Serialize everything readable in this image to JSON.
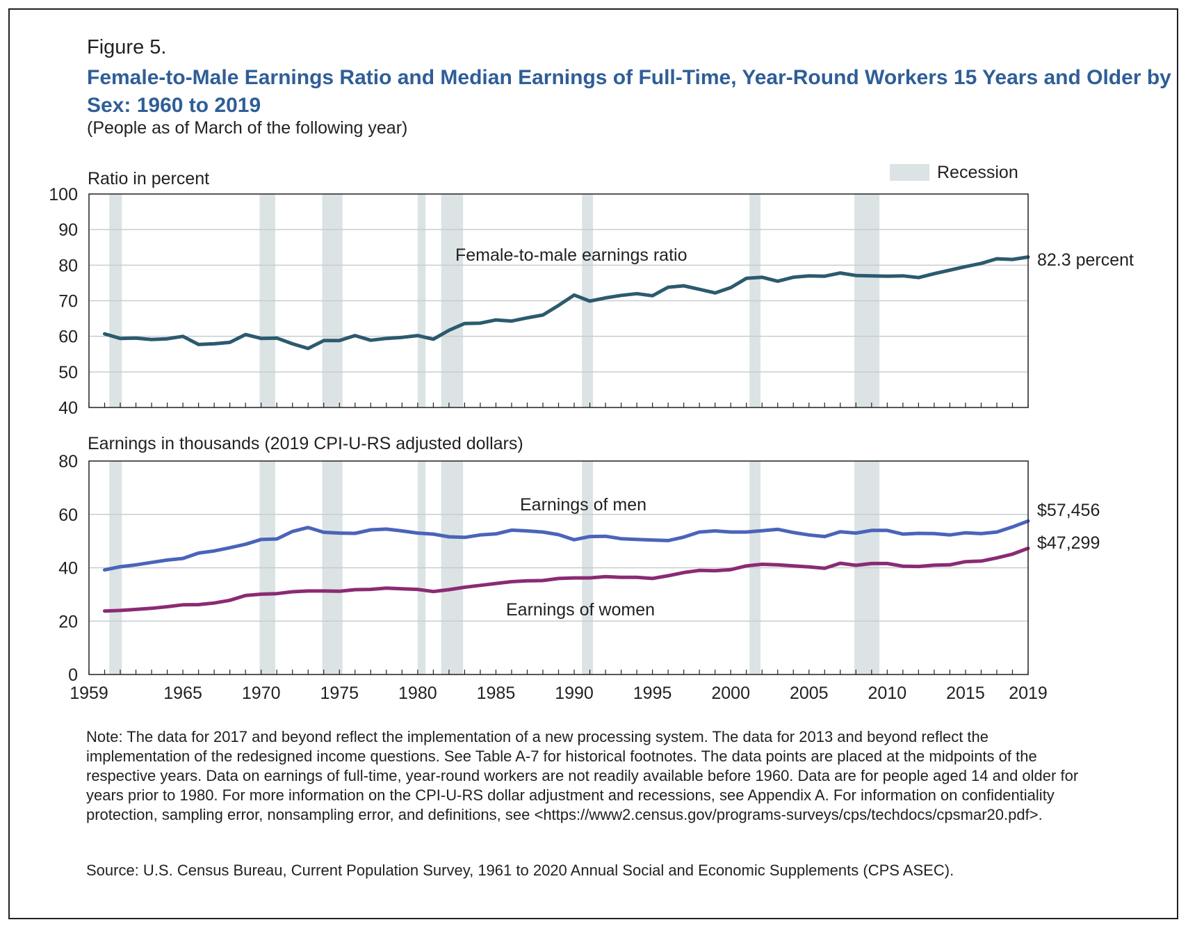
{
  "figure_label": "Figure 5.",
  "title": "Female-to-Male Earnings Ratio and Median Earnings of Full-Time, Year-Round Workers 15 Years and Older by Sex: 1960 to 2019",
  "subtitle": "(People as of March of the following year)",
  "legend": {
    "recession_label": "Recession"
  },
  "colors": {
    "ratio": "#2c5a6e",
    "men": "#4a64ba",
    "women": "#8b2a74",
    "recession": "#dbe3e4",
    "grid": "#c9cccf"
  },
  "note": "Note: The data for 2017 and beyond reflect the implementation of a new processing system. The data for 2013 and beyond reflect the implementation of the redesigned income questions. See Table A-7 for historical footnotes. The data points are placed at the midpoints of the respective years. Data on earnings of full-time, year-round workers are not readily available before 1960. Data are for people aged 14 and older for years prior to 1980. For more information on the CPI-U-RS dollar adjustment and recessions, see Appendix A. For information on confidentiality protection, sampling error, nonsampling error, and definitions, see <https://www2.census.gov/programs-surveys/cps/techdocs/cpsmar20.pdf>.",
  "source": "Source: U.S. Census Bureau, Current Population Survey, 1961 to 2020 Annual Social and Economic Supplements (CPS ASEC).",
  "chart_data": [
    {
      "type": "line",
      "ylabel": "Ratio in percent",
      "ylim": [
        40,
        100
      ],
      "yticks": [
        "40",
        "50",
        "60",
        "70",
        "80",
        "90",
        "100"
      ],
      "xlim": [
        1959,
        2019
      ],
      "grid": true,
      "recessions": [
        [
          1960.3,
          1961.1
        ],
        [
          1969.9,
          1970.9
        ],
        [
          1973.9,
          1975.2
        ],
        [
          1980.0,
          1980.5
        ],
        [
          1981.5,
          1982.9
        ],
        [
          1990.5,
          1991.2
        ],
        [
          2001.2,
          2001.9
        ],
        [
          2007.9,
          2009.5
        ]
      ],
      "series": [
        {
          "name": "Female-to-male earnings ratio",
          "end_label": "82.3 percent",
          "x": [
            1960,
            1961,
            1962,
            1963,
            1964,
            1965,
            1966,
            1967,
            1968,
            1969,
            1970,
            1971,
            1972,
            1973,
            1974,
            1975,
            1976,
            1977,
            1978,
            1979,
            1980,
            1981,
            1982,
            1983,
            1984,
            1985,
            1986,
            1987,
            1988,
            1989,
            1990,
            1991,
            1992,
            1993,
            1994,
            1995,
            1996,
            1997,
            1998,
            1999,
            2000,
            2001,
            2002,
            2003,
            2004,
            2005,
            2006,
            2007,
            2008,
            2009,
            2010,
            2011,
            2012,
            2013,
            2014,
            2015,
            2016,
            2017,
            2018,
            2019
          ],
          "y": [
            60.7,
            59.4,
            59.5,
            59.1,
            59.3,
            60.0,
            57.7,
            57.9,
            58.3,
            60.5,
            59.4,
            59.5,
            57.9,
            56.6,
            58.8,
            58.8,
            60.2,
            58.9,
            59.4,
            59.7,
            60.2,
            59.2,
            61.7,
            63.6,
            63.7,
            64.6,
            64.3,
            65.2,
            66.0,
            68.7,
            71.6,
            69.9,
            70.8,
            71.5,
            72.0,
            71.4,
            73.8,
            74.2,
            73.2,
            72.2,
            73.7,
            76.3,
            76.6,
            75.5,
            76.6,
            77.0,
            76.9,
            77.8,
            77.1,
            77.0,
            76.9,
            77.0,
            76.5,
            77.6,
            78.6,
            79.6,
            80.5,
            81.8,
            81.6,
            82.3
          ]
        }
      ]
    },
    {
      "type": "line",
      "ylabel": "Earnings in thousands (2019 CPI-U-RS adjusted dollars)",
      "ylim": [
        0,
        80
      ],
      "yticks": [
        "0",
        "20",
        "40",
        "60",
        "80"
      ],
      "xlim": [
        1959,
        2019
      ],
      "xticks": [
        "1959",
        "1965",
        "1970",
        "1975",
        "1980",
        "1985",
        "1990",
        "1995",
        "2000",
        "2005",
        "2010",
        "2015",
        "2019"
      ],
      "grid": true,
      "recessions": [
        [
          1960.3,
          1961.1
        ],
        [
          1969.9,
          1970.9
        ],
        [
          1973.9,
          1975.2
        ],
        [
          1980.0,
          1980.5
        ],
        [
          1981.5,
          1982.9
        ],
        [
          1990.5,
          1991.2
        ],
        [
          2001.2,
          2001.9
        ],
        [
          2007.9,
          2009.5
        ]
      ],
      "series": [
        {
          "name": "Earnings of men",
          "end_label": "$57,456",
          "x": [
            1960,
            1961,
            1962,
            1963,
            1964,
            1965,
            1966,
            1967,
            1968,
            1969,
            1970,
            1971,
            1972,
            1973,
            1974,
            1975,
            1976,
            1977,
            1978,
            1979,
            1980,
            1981,
            1982,
            1983,
            1984,
            1985,
            1986,
            1987,
            1988,
            1989,
            1990,
            1991,
            1992,
            1993,
            1994,
            1995,
            1996,
            1997,
            1998,
            1999,
            2000,
            2001,
            2002,
            2003,
            2004,
            2005,
            2006,
            2007,
            2008,
            2009,
            2010,
            2011,
            2012,
            2013,
            2014,
            2015,
            2016,
            2017,
            2018,
            2019
          ],
          "y": [
            39.2,
            40.4,
            41.1,
            42.0,
            42.9,
            43.5,
            45.5,
            46.3,
            47.5,
            48.8,
            50.6,
            50.8,
            53.6,
            55.1,
            53.3,
            53.0,
            52.9,
            54.2,
            54.5,
            53.8,
            53.0,
            52.6,
            51.6,
            51.4,
            52.3,
            52.7,
            54.1,
            53.8,
            53.4,
            52.4,
            50.5,
            51.7,
            51.8,
            50.9,
            50.6,
            50.4,
            50.2,
            51.5,
            53.4,
            53.8,
            53.4,
            53.4,
            53.9,
            54.4,
            53.2,
            52.3,
            51.7,
            53.5,
            53.0,
            54.0,
            54.0,
            52.6,
            52.9,
            52.8,
            52.3,
            53.1,
            52.8,
            53.4,
            55.3,
            57.5
          ]
        },
        {
          "name": "Earnings of women",
          "end_label": "$47,299",
          "x": [
            1960,
            1961,
            1962,
            1963,
            1964,
            1965,
            1966,
            1967,
            1968,
            1969,
            1970,
            1971,
            1972,
            1973,
            1974,
            1975,
            1976,
            1977,
            1978,
            1979,
            1980,
            1981,
            1982,
            1983,
            1984,
            1985,
            1986,
            1987,
            1988,
            1989,
            1990,
            1991,
            1992,
            1993,
            1994,
            1995,
            1996,
            1997,
            1998,
            1999,
            2000,
            2001,
            2002,
            2003,
            2004,
            2005,
            2006,
            2007,
            2008,
            2009,
            2010,
            2011,
            2012,
            2013,
            2014,
            2015,
            2016,
            2017,
            2018,
            2019
          ],
          "y": [
            23.8,
            24.0,
            24.4,
            24.8,
            25.4,
            26.1,
            26.2,
            26.8,
            27.8,
            29.6,
            30.1,
            30.3,
            31.0,
            31.3,
            31.3,
            31.2,
            31.8,
            31.9,
            32.4,
            32.1,
            31.9,
            31.1,
            31.8,
            32.7,
            33.4,
            34.1,
            34.8,
            35.1,
            35.2,
            36.0,
            36.2,
            36.2,
            36.7,
            36.4,
            36.4,
            36.0,
            37.0,
            38.2,
            39.0,
            38.9,
            39.3,
            40.7,
            41.3,
            41.1,
            40.7,
            40.3,
            39.8,
            41.7,
            40.9,
            41.6,
            41.6,
            40.6,
            40.5,
            41.0,
            41.1,
            42.3,
            42.5,
            43.7,
            45.1,
            47.3
          ]
        }
      ]
    }
  ]
}
